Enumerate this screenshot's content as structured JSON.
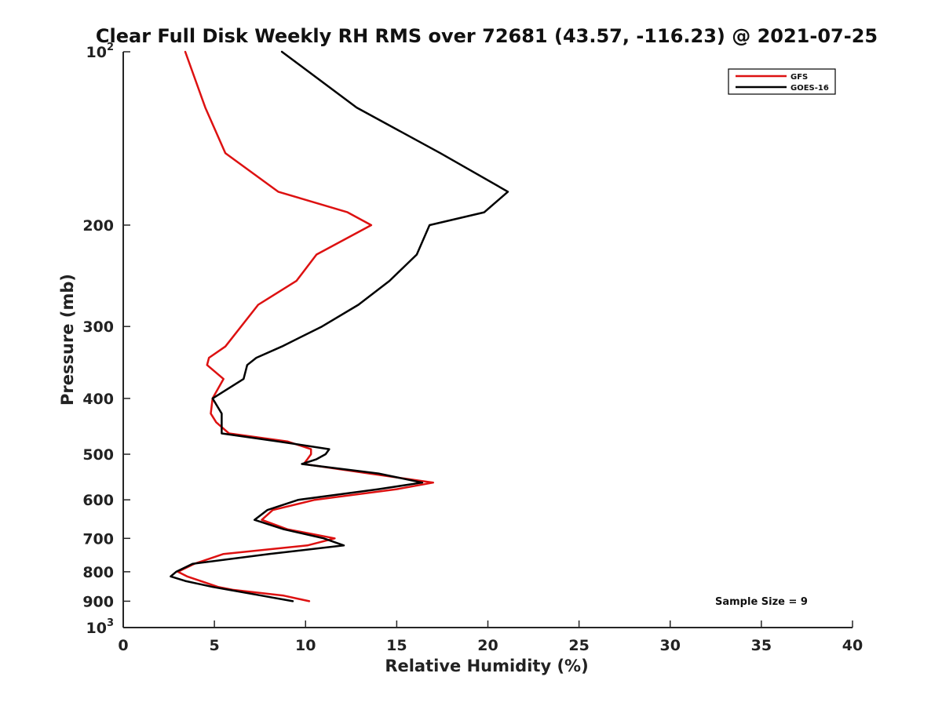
{
  "chart_data": {
    "type": "line",
    "title": "Clear Full Disk Weekly RH RMS over 72681 (43.57, -116.23) @ 2021-07-25",
    "xlabel": "Relative Humidity (%)",
    "ylabel": "Pressure (mb)",
    "xlim": [
      0,
      40
    ],
    "ylim": [
      100,
      1000
    ],
    "y_scale": "log",
    "y_reversed": true,
    "grid": false,
    "x_ticks": [
      0,
      5,
      10,
      15,
      20,
      25,
      30,
      35,
      40
    ],
    "x_tick_labels": [
      "0",
      "5",
      "10",
      "15",
      "20",
      "25",
      "30",
      "35",
      "40"
    ],
    "y_ticks": [
      {
        "value": 100,
        "base": "10",
        "exp": "2"
      },
      {
        "value": 200,
        "label": "200"
      },
      {
        "value": 300,
        "label": "300"
      },
      {
        "value": 400,
        "label": "400"
      },
      {
        "value": 500,
        "label": "500"
      },
      {
        "value": 600,
        "label": "600"
      },
      {
        "value": 700,
        "label": "700"
      },
      {
        "value": 800,
        "label": "800"
      },
      {
        "value": 900,
        "label": "900"
      },
      {
        "value": 1000,
        "base": "10",
        "exp": "3"
      }
    ],
    "legend_position": "top-right",
    "annotation": "Sample Size = 9",
    "series": [
      {
        "name": "GFS",
        "color": "#dd1111",
        "points": [
          [
            3.4,
            100
          ],
          [
            4.5,
            125
          ],
          [
            5.6,
            150
          ],
          [
            8.5,
            175
          ],
          [
            12.3,
            190
          ],
          [
            13.6,
            200
          ],
          [
            10.6,
            225
          ],
          [
            9.5,
            250
          ],
          [
            7.4,
            275
          ],
          [
            5.6,
            325
          ],
          [
            4.7,
            340
          ],
          [
            4.6,
            350
          ],
          [
            5.5,
            370
          ],
          [
            4.9,
            400
          ],
          [
            4.8,
            425
          ],
          [
            5.1,
            440
          ],
          [
            5.8,
            460
          ],
          [
            9.0,
            475
          ],
          [
            10.3,
            490
          ],
          [
            10.3,
            500
          ],
          [
            10.1,
            510
          ],
          [
            9.9,
            520
          ],
          [
            13.5,
            540
          ],
          [
            17.0,
            560
          ],
          [
            15.0,
            575
          ],
          [
            10.5,
            600
          ],
          [
            8.2,
            625
          ],
          [
            7.6,
            650
          ],
          [
            9.0,
            675
          ],
          [
            11.6,
            700
          ],
          [
            10.1,
            720
          ],
          [
            5.5,
            745
          ],
          [
            3.9,
            775
          ],
          [
            3.0,
            800
          ],
          [
            3.5,
            815
          ],
          [
            5.2,
            850
          ],
          [
            6.0,
            860
          ],
          [
            8.8,
            880
          ],
          [
            10.2,
            900
          ]
        ]
      },
      {
        "name": "GOES-16",
        "color": "#000000",
        "points": [
          [
            8.7,
            100
          ],
          [
            12.8,
            125
          ],
          [
            17.4,
            150
          ],
          [
            21.1,
            175
          ],
          [
            19.8,
            190
          ],
          [
            16.8,
            200
          ],
          [
            16.1,
            225
          ],
          [
            14.6,
            250
          ],
          [
            12.9,
            275
          ],
          [
            10.9,
            300
          ],
          [
            8.7,
            325
          ],
          [
            7.3,
            340
          ],
          [
            6.8,
            350
          ],
          [
            6.6,
            370
          ],
          [
            4.9,
            400
          ],
          [
            5.4,
            425
          ],
          [
            5.4,
            445
          ],
          [
            5.4,
            460
          ],
          [
            8.5,
            475
          ],
          [
            11.3,
            490
          ],
          [
            11.1,
            500
          ],
          [
            10.6,
            510
          ],
          [
            9.8,
            520
          ],
          [
            14.0,
            540
          ],
          [
            16.4,
            560
          ],
          [
            14.0,
            575
          ],
          [
            9.6,
            600
          ],
          [
            7.9,
            625
          ],
          [
            7.2,
            650
          ],
          [
            8.8,
            675
          ],
          [
            11.0,
            700
          ],
          [
            12.1,
            720
          ],
          [
            8.0,
            745
          ],
          [
            3.8,
            775
          ],
          [
            2.9,
            800
          ],
          [
            2.6,
            815
          ],
          [
            3.4,
            830
          ],
          [
            4.9,
            850
          ],
          [
            5.8,
            860
          ],
          [
            7.6,
            880
          ],
          [
            9.3,
            900
          ]
        ]
      }
    ]
  }
}
